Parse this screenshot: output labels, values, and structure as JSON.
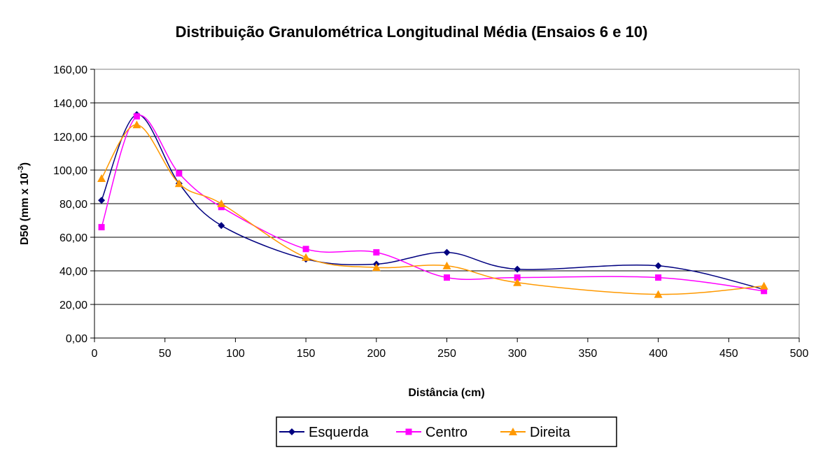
{
  "chart_data": {
    "type": "line",
    "title": "Distribuição Granulométrica Longitudinal Média (Ensaios 6 e 10)",
    "xlabel": "Distância (cm)",
    "ylabel": "D50 (mm x 10-3)",
    "ylabel_base": "D50 (mm x 10",
    "ylabel_exp": "-3",
    "ylabel_end": ")",
    "xlim": [
      0,
      500
    ],
    "ylim": [
      0,
      160
    ],
    "x_ticks": [
      0,
      50,
      100,
      150,
      200,
      250,
      300,
      350,
      400,
      450,
      500
    ],
    "y_ticks": [
      "0,00",
      "20,00",
      "40,00",
      "60,00",
      "80,00",
      "100,00",
      "120,00",
      "140,00",
      "160,00"
    ],
    "grid": "horizontal",
    "legend_position": "bottom",
    "series": [
      {
        "name": "Esquerda",
        "color": "#000080",
        "marker": "diamond",
        "x": [
          5,
          30,
          60,
          90,
          150,
          200,
          250,
          300,
          400,
          475
        ],
        "y": [
          82,
          133,
          92,
          67,
          47,
          44,
          51,
          41,
          43,
          29
        ]
      },
      {
        "name": "Centro",
        "color": "#ff00ff",
        "marker": "square",
        "x": [
          5,
          30,
          60,
          90,
          150,
          200,
          250,
          300,
          400,
          475
        ],
        "y": [
          66,
          132,
          98,
          78,
          53,
          51,
          36,
          36,
          36,
          28
        ]
      },
      {
        "name": "Direita",
        "color": "#ff9900",
        "marker": "triangle",
        "x": [
          5,
          30,
          60,
          90,
          150,
          200,
          250,
          300,
          400,
          475
        ],
        "y": [
          95,
          127,
          92,
          80,
          48,
          42,
          43,
          33,
          26,
          31
        ]
      }
    ]
  }
}
